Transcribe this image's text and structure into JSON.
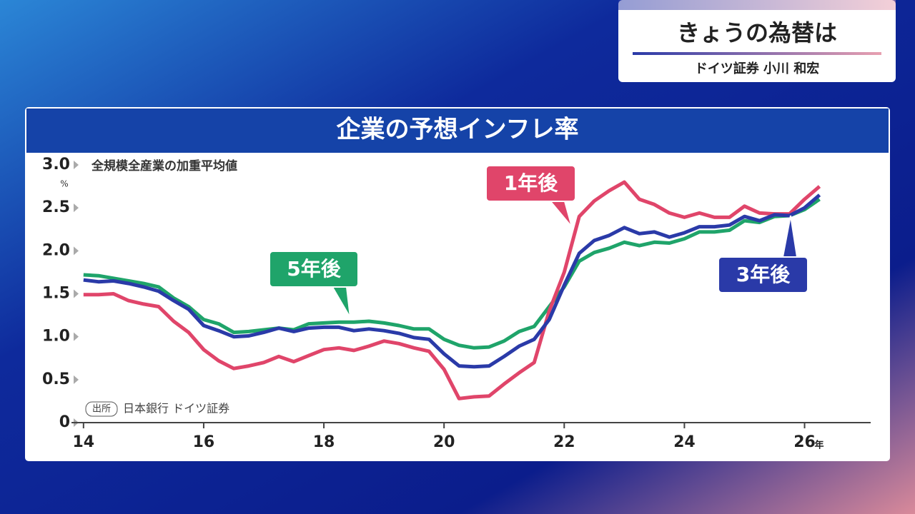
{
  "header": {
    "title": "きょうの為替は",
    "presenter": "ドイツ証券 小川 和宏"
  },
  "chart_data": {
    "type": "line",
    "title": "企業の予想インフレ率",
    "subtitle": "全規模全産業の加重平均値",
    "source_tag": "出所",
    "source": "日本銀行 ドイツ証券",
    "y_unit": "%",
    "x_unit": "年",
    "x": [
      14,
      14.25,
      14.5,
      14.75,
      15,
      15.25,
      15.5,
      15.75,
      16,
      16.25,
      16.5,
      16.75,
      17,
      17.25,
      17.5,
      17.75,
      18,
      18.25,
      18.5,
      18.75,
      19,
      19.25,
      19.5,
      19.75,
      20,
      20.25,
      20.5,
      20.75,
      21,
      21.25,
      21.5,
      21.75,
      22,
      22.25,
      22.5,
      22.75,
      23,
      23.25,
      23.5,
      23.75,
      24,
      24.25,
      24.5,
      24.75,
      25,
      25.25,
      25.5,
      25.75,
      26,
      26.25
    ],
    "series": [
      {
        "name": "1年後",
        "color": "#e0456a",
        "values": [
          1.49,
          1.49,
          1.5,
          1.42,
          1.38,
          1.35,
          1.18,
          1.05,
          0.85,
          0.72,
          0.63,
          0.66,
          0.7,
          0.77,
          0.71,
          0.78,
          0.85,
          0.87,
          0.84,
          0.89,
          0.95,
          0.92,
          0.87,
          0.83,
          0.62,
          0.28,
          0.3,
          0.31,
          0.45,
          0.58,
          0.7,
          1.3,
          1.75,
          2.4,
          2.58,
          2.7,
          2.8,
          2.6,
          2.54,
          2.44,
          2.39,
          2.44,
          2.39,
          2.39,
          2.52,
          2.44,
          2.43,
          2.43,
          2.6,
          2.75
        ]
      },
      {
        "name": "3年後",
        "color": "#2a3aa8",
        "values": [
          1.66,
          1.64,
          1.65,
          1.62,
          1.58,
          1.53,
          1.42,
          1.32,
          1.13,
          1.07,
          1.0,
          1.01,
          1.05,
          1.1,
          1.06,
          1.1,
          1.11,
          1.11,
          1.07,
          1.09,
          1.07,
          1.04,
          0.99,
          0.97,
          0.8,
          0.66,
          0.65,
          0.66,
          0.77,
          0.89,
          0.97,
          1.2,
          1.6,
          1.97,
          2.12,
          2.18,
          2.27,
          2.2,
          2.22,
          2.16,
          2.21,
          2.28,
          2.28,
          2.3,
          2.4,
          2.35,
          2.42,
          2.41,
          2.5,
          2.65
        ]
      },
      {
        "name": "5年後",
        "color": "#1fa46a",
        "values": [
          1.72,
          1.71,
          1.68,
          1.65,
          1.62,
          1.58,
          1.45,
          1.35,
          1.2,
          1.15,
          1.05,
          1.06,
          1.08,
          1.1,
          1.08,
          1.15,
          1.16,
          1.17,
          1.17,
          1.18,
          1.16,
          1.13,
          1.09,
          1.09,
          0.97,
          0.9,
          0.87,
          0.88,
          0.95,
          1.06,
          1.12,
          1.35,
          1.58,
          1.88,
          1.98,
          2.03,
          2.1,
          2.06,
          2.1,
          2.09,
          2.14,
          2.22,
          2.22,
          2.24,
          2.35,
          2.33,
          2.4,
          2.41,
          2.48,
          2.6
        ]
      }
    ],
    "xlim": [
      13.8,
      27.1
    ],
    "xticks": [
      14,
      16,
      18,
      20,
      22,
      24,
      26
    ],
    "ylim": [
      0,
      3
    ],
    "yticks": [
      0,
      {
        "value": 0.5,
        "label": "0.5"
      },
      {
        "value": 1,
        "label": "1.0"
      },
      {
        "value": 1.5,
        "label": "1.5"
      },
      {
        "value": 2,
        "label": "2.0"
      },
      {
        "value": 2.5,
        "label": "2.5"
      },
      {
        "value": 3,
        "label": "3.0"
      }
    ]
  }
}
